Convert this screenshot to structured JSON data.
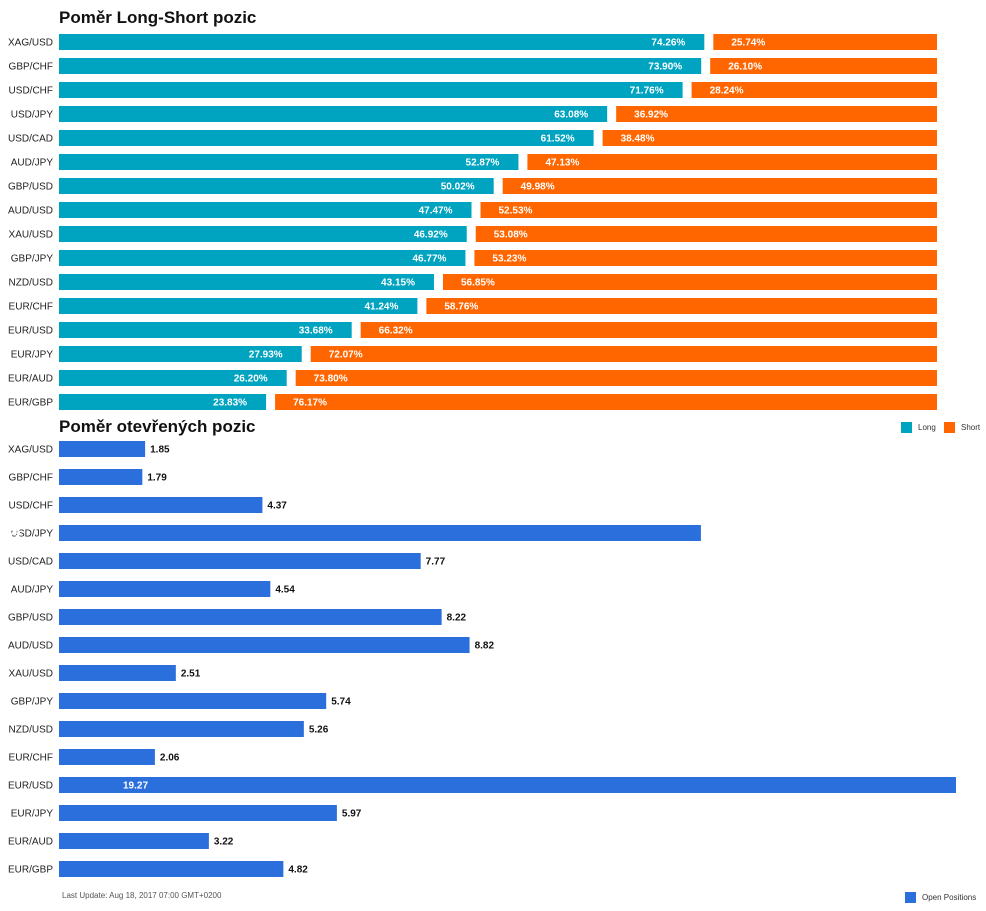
{
  "titles": {
    "ls": "Poměr Long-Short pozic",
    "oi": "Poměr otevřených pozic"
  },
  "legend": {
    "long": "Long",
    "short": "Short",
    "open": "Open Positions"
  },
  "footer": {
    "last_update": "Last Update: Aug 18, 2017 07:00 GMT+0200"
  },
  "colors": {
    "long": "#00a3c0",
    "short": "#ff6600",
    "open": "#2a6fdb"
  },
  "chart_data": [
    {
      "type": "bar",
      "title": "Poměr Long-Short pozic",
      "orientation": "horizontal",
      "stacked": true,
      "categories": [
        "XAG/USD",
        "GBP/CHF",
        "USD/CHF",
        "USD/JPY",
        "USD/CAD",
        "AUD/JPY",
        "GBP/USD",
        "AUD/USD",
        "XAU/USD",
        "GBP/JPY",
        "NZD/USD",
        "EUR/CHF",
        "EUR/USD",
        "EUR/JPY",
        "EUR/AUD",
        "EUR/GBP"
      ],
      "series": [
        {
          "name": "Long",
          "values": [
            74.26,
            73.9,
            71.76,
            63.08,
            61.52,
            52.87,
            50.02,
            47.47,
            46.92,
            46.77,
            43.15,
            41.24,
            33.68,
            27.93,
            26.2,
            23.83
          ]
        },
        {
          "name": "Short",
          "values": [
            25.74,
            26.1,
            28.24,
            36.92,
            38.48,
            47.13,
            49.98,
            52.53,
            53.08,
            53.23,
            56.85,
            58.76,
            66.32,
            72.07,
            73.8,
            76.17
          ]
        }
      ],
      "value_suffix": "%",
      "legend_position": "right"
    },
    {
      "type": "bar",
      "title": "Poměr otevřených pozic",
      "orientation": "horizontal",
      "categories": [
        "XAG/USD",
        "GBP/CHF",
        "USD/CHF",
        "USD/JPY",
        "USD/CAD",
        "AUD/JPY",
        "GBP/USD",
        "AUD/USD",
        "XAU/USD",
        "GBP/JPY",
        "NZD/USD",
        "EUR/CHF",
        "EUR/USD",
        "EUR/JPY",
        "EUR/AUD",
        "EUR/GBP"
      ],
      "series": [
        {
          "name": "Open Positions",
          "values": [
            1.85,
            1.79,
            4.37,
            13.79,
            7.77,
            4.54,
            8.22,
            8.82,
            2.51,
            5.74,
            5.26,
            2.06,
            19.27,
            5.97,
            3.22,
            4.82
          ]
        }
      ],
      "legend_position": "bottom-right"
    }
  ]
}
